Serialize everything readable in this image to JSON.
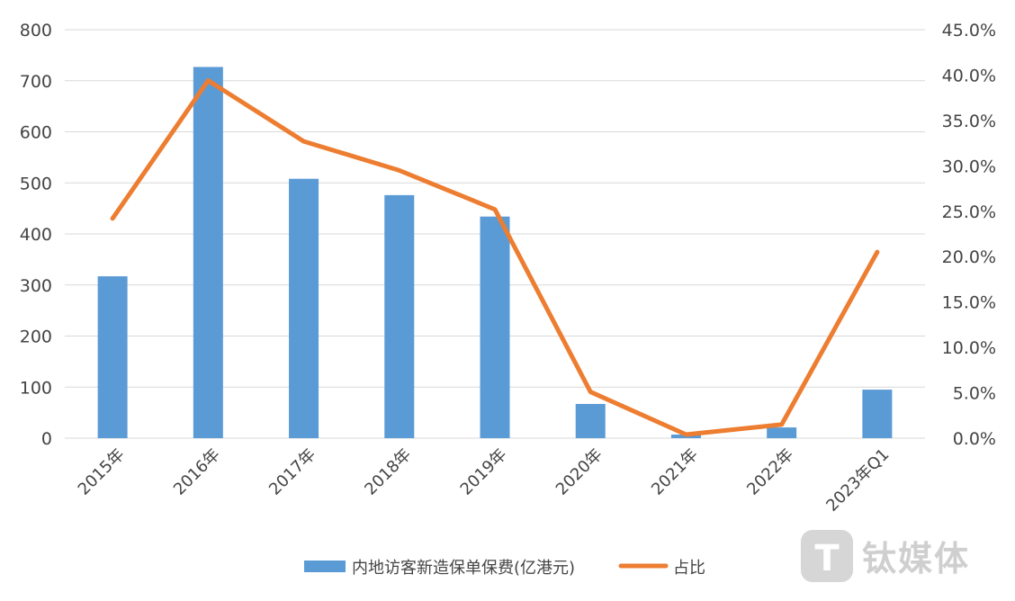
{
  "chart_data": {
    "type": "bar",
    "categories": [
      "2015年",
      "2016年",
      "2017年",
      "2018年",
      "2019年",
      "2020年",
      "2021年",
      "2022年",
      "2023年Q1"
    ],
    "series": [
      {
        "name": "内地访客新造保单保费(亿港元)",
        "type": "bar",
        "axis": "left",
        "color": "#5B9BD5",
        "values": [
          317,
          727,
          508,
          476,
          434,
          67,
          7,
          21,
          95
        ]
      },
      {
        "name": "占比",
        "type": "line",
        "axis": "right",
        "color": "#ED7D31",
        "values": [
          0.242,
          0.394,
          0.327,
          0.295,
          0.252,
          0.051,
          0.004,
          0.015,
          0.205
        ]
      }
    ],
    "y_left": {
      "min": 0,
      "max": 800,
      "ticks": [
        "0",
        "100",
        "200",
        "300",
        "400",
        "500",
        "600",
        "700",
        "800"
      ]
    },
    "y_right": {
      "min": 0,
      "max": 0.45,
      "ticks": [
        "0.0%",
        "5.0%",
        "10.0%",
        "15.0%",
        "20.0%",
        "25.0%",
        "30.0%",
        "35.0%",
        "40.0%",
        "45.0%"
      ]
    },
    "grid": true,
    "legend": "bottom"
  },
  "watermark": {
    "text": "钛媒体",
    "logo_letter": "T"
  }
}
